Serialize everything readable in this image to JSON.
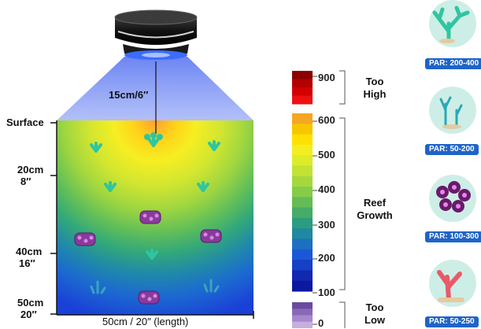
{
  "diagram": {
    "light_height": "15cm/6″",
    "tank_width_label": "50cm / 20″ (length)",
    "depth_labels": [
      {
        "line1": "Surface",
        "line2": ""
      },
      {
        "line1": "20cm",
        "line2": "8″"
      },
      {
        "line1": "40cm",
        "line2": "16″"
      },
      {
        "line1": "50cm",
        "line2": "20″"
      }
    ]
  },
  "par_scale": {
    "ticks": [
      "900",
      "600",
      "500",
      "400",
      "300",
      "200",
      "100",
      "0"
    ],
    "zones": [
      {
        "line1": "Too",
        "line2": "High"
      },
      {
        "line1": "Reef",
        "line2": "Growth"
      },
      {
        "line1": "Too",
        "line2": "Low"
      }
    ],
    "colors": {
      "too_high": [
        "#8b0000",
        "#b30000",
        "#d40000",
        "#ee1010"
      ],
      "growth": [
        "#f5a623",
        "#f7c600",
        "#ffe000",
        "#f4ee20",
        "#dcec28",
        "#c2e234",
        "#a6d83e",
        "#86cc48",
        "#64bc56",
        "#46ac68",
        "#2c9c80",
        "#2088a0",
        "#1c70c0",
        "#1a58d8",
        "#1640c8",
        "#1228b0",
        "#0c18a0"
      ],
      "too_low": [
        "#6a4aa0",
        "#8a68b8",
        "#a888cc",
        "#c8aee0"
      ]
    }
  },
  "coral_legend": [
    {
      "name": "acropora-coral",
      "par": "PAR: 200-400"
    },
    {
      "name": "soft-coral",
      "par": "PAR: 50-200"
    },
    {
      "name": "zoanthid-coral",
      "par": "PAR: 100-300"
    },
    {
      "name": "mushroom-coral",
      "par": "PAR: 50-250"
    }
  ]
}
